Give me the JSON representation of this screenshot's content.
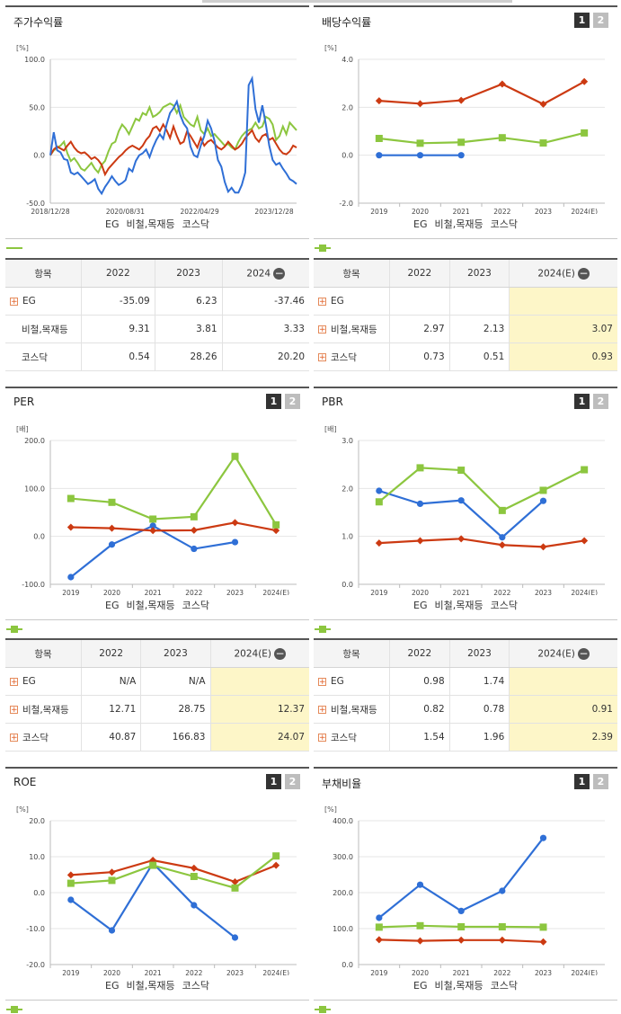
{
  "colors": {
    "eg": "#2f6fd6",
    "steel": "#cc3a12",
    "kosdaq": "#8cc63f"
  },
  "legend": [
    "EG",
    "비철,목재등",
    "코스닥"
  ],
  "btn_labels": [
    "1",
    "2"
  ],
  "panels": [
    {
      "title": "주가수익률",
      "unit": "[%]",
      "show_buttons": false,
      "chart_data": {
        "type": "line",
        "title": "주가수익률",
        "ylabel": "[%]",
        "ylim": [
          -50,
          100
        ],
        "yticks": [
          "100.0",
          "50.0",
          "0.0",
          "-50.0"
        ],
        "xtick_labels": [
          "2018/12/28",
          "2020/08/31",
          "2022/04/29",
          "2023/12/28"
        ],
        "x_start": "2018-12-28",
        "x_end": "2024-06-28",
        "markers": false,
        "series": [
          {
            "name": "EG",
            "key": "eg",
            "values": [
              0,
              24,
              5,
              3,
              -4,
              -5,
              -18,
              -20,
              -18,
              -22,
              -26,
              -30,
              -28,
              -25,
              -35,
              -40,
              -33,
              -28,
              -22,
              -27,
              -31,
              -29,
              -26,
              -14,
              -17,
              -6,
              0,
              2,
              6,
              -2,
              8,
              16,
              22,
              17,
              32,
              44,
              49,
              56,
              42,
              33,
              28,
              9,
              0,
              -2,
              10,
              20,
              36,
              28,
              15,
              -5,
              -12,
              -28,
              -38,
              -34,
              -39,
              -39,
              -31,
              -18,
              73,
              80,
              48,
              34,
              52,
              32,
              10,
              -5,
              -10,
              -8,
              -14,
              -19,
              -25,
              -27,
              -30
            ]
          },
          {
            "name": "비철,목재등",
            "key": "steel",
            "values": [
              0,
              6,
              9,
              7,
              5,
              10,
              14,
              8,
              4,
              2,
              3,
              0,
              -4,
              -2,
              -5,
              -10,
              -20,
              -14,
              -10,
              -6,
              -2,
              1,
              5,
              8,
              10,
              8,
              6,
              10,
              16,
              20,
              28,
              30,
              25,
              32,
              26,
              18,
              30,
              20,
              12,
              14,
              25,
              20,
              14,
              8,
              18,
              10,
              14,
              16,
              12,
              8,
              6,
              9,
              14,
              10,
              6,
              8,
              12,
              18,
              22,
              26,
              18,
              14,
              20,
              22,
              16,
              18,
              12,
              6,
              2,
              1,
              4,
              10,
              8
            ]
          },
          {
            "name": "코스닥",
            "key": "kosdaq",
            "values": [
              0,
              5,
              8,
              10,
              14,
              2,
              -6,
              -3,
              -8,
              -14,
              -16,
              -12,
              -8,
              -14,
              -18,
              -10,
              -6,
              4,
              12,
              14,
              25,
              32,
              28,
              22,
              30,
              38,
              36,
              44,
              42,
              50,
              40,
              42,
              45,
              50,
              52,
              54,
              52,
              44,
              52,
              40,
              36,
              32,
              30,
              40,
              26,
              22,
              28,
              20,
              22,
              18,
              14,
              10,
              12,
              8,
              6,
              14,
              20,
              24,
              26,
              28,
              34,
              28,
              30,
              40,
              38,
              32,
              16,
              20,
              30,
              22,
              34,
              30,
              26
            ]
          }
        ]
      }
    },
    {
      "title": "배당수익률",
      "unit": "[%]",
      "show_buttons": true,
      "chart_data": {
        "type": "line",
        "title": "배당수익률",
        "ylabel": "[%]",
        "ylim": [
          -2,
          4
        ],
        "yticks": [
          "4.0",
          "2.0",
          "0.0",
          "-2.0"
        ],
        "categories": [
          "2019",
          "2020",
          "2021",
          "2022",
          "2023",
          "2024(E)"
        ],
        "markers": true,
        "series": [
          {
            "name": "EG",
            "key": "eg",
            "values": [
              0,
              0,
              0,
              null,
              null,
              null
            ]
          },
          {
            "name": "비철,목재등",
            "key": "steel",
            "values": [
              2.27,
              2.15,
              2.29,
              2.97,
              2.13,
              3.07
            ]
          },
          {
            "name": "코스닥",
            "key": "kosdaq",
            "values": [
              0.7,
              0.5,
              0.54,
              0.73,
              0.51,
              0.93
            ]
          }
        ]
      }
    },
    {
      "title": "PER",
      "unit": "[배]",
      "show_buttons": true,
      "chart_data": {
        "type": "line",
        "title": "PER",
        "ylabel": "[배]",
        "ylim": [
          -100,
          200
        ],
        "yticks": [
          "200.0",
          "100.0",
          "0.0",
          "-100.0"
        ],
        "categories": [
          "2019",
          "2020",
          "2021",
          "2022",
          "2023",
          "2024(E)"
        ],
        "markers": true,
        "series": [
          {
            "name": "EG",
            "key": "eg",
            "values": [
              -85,
              -17,
              22,
              -26,
              -12,
              null
            ]
          },
          {
            "name": "비철,목재등",
            "key": "steel",
            "values": [
              19,
              17,
              12,
              12.71,
              28.75,
              12.37
            ]
          },
          {
            "name": "코스닥",
            "key": "kosdaq",
            "values": [
              79,
              71,
              36,
              40.87,
              166.83,
              24.07
            ]
          }
        ]
      }
    },
    {
      "title": "PBR",
      "unit": "[배]",
      "show_buttons": true,
      "chart_data": {
        "type": "line",
        "title": "PBR",
        "ylabel": "[배]",
        "ylim": [
          0,
          3
        ],
        "yticks": [
          "3.0",
          "2.0",
          "1.0",
          "0.0"
        ],
        "categories": [
          "2019",
          "2020",
          "2021",
          "2022",
          "2023",
          "2024(E)"
        ],
        "markers": true,
        "series": [
          {
            "name": "EG",
            "key": "eg",
            "values": [
              1.95,
              1.68,
              1.75,
              0.98,
              1.74,
              null
            ]
          },
          {
            "name": "비철,목재등",
            "key": "steel",
            "values": [
              0.86,
              0.91,
              0.95,
              0.82,
              0.78,
              0.91
            ]
          },
          {
            "name": "코스닥",
            "key": "kosdaq",
            "values": [
              1.72,
              2.43,
              2.38,
              1.54,
              1.96,
              2.39
            ]
          }
        ]
      }
    },
    {
      "title": "ROE",
      "unit": "[%]",
      "show_buttons": true,
      "chart_data": {
        "type": "line",
        "title": "ROE",
        "ylabel": "[%]",
        "ylim": [
          -20,
          20
        ],
        "yticks": [
          "20.0",
          "10.0",
          "0.0",
          "-10.0",
          "-20.0"
        ],
        "categories": [
          "2019",
          "2020",
          "2021",
          "2022",
          "2023",
          "2024(E)"
        ],
        "markers": true,
        "series": [
          {
            "name": "EG",
            "key": "eg",
            "values": [
              -2,
              -10.5,
              8.2,
              -3.5,
              -12.5,
              null
            ]
          },
          {
            "name": "비철,목재등",
            "key": "steel",
            "values": [
              4.9,
              5.7,
              9,
              6.8,
              3,
              7.6
            ]
          },
          {
            "name": "코스닥",
            "key": "kosdaq",
            "values": [
              2.6,
              3.4,
              7.6,
              4.5,
              1.3,
              10.2
            ]
          }
        ]
      }
    },
    {
      "title": "부채비율",
      "unit": "[%]",
      "show_buttons": true,
      "chart_data": {
        "type": "line",
        "title": "부채비율",
        "ylabel": "[%]",
        "ylim": [
          0,
          400
        ],
        "yticks": [
          "400.0",
          "300.0",
          "200.0",
          "100.0",
          "0.0"
        ],
        "categories": [
          "2019",
          "2020",
          "2021",
          "2022",
          "2023",
          "2024(E)"
        ],
        "markers": true,
        "series": [
          {
            "name": "EG",
            "key": "eg",
            "values": [
              130,
              222,
              149,
              205,
              352,
              null
            ]
          },
          {
            "name": "비철,목재등",
            "key": "steel",
            "values": [
              69,
              66,
              68,
              68,
              63,
              null
            ]
          },
          {
            "name": "코스닥",
            "key": "kosdaq",
            "values": [
              104,
              108,
              105,
              105,
              104,
              null
            ]
          }
        ]
      }
    }
  ],
  "tables": [
    {
      "header": [
        "항목",
        "2022",
        "2023",
        "2024"
      ],
      "hl_last": false,
      "rows": [
        {
          "label": "EG",
          "plus": true,
          "values": [
            "-35.09",
            "6.23",
            "-37.46"
          ]
        },
        {
          "label": "비철,목재등",
          "plus": false,
          "values": [
            "9.31",
            "3.81",
            "3.33"
          ]
        },
        {
          "label": "코스닥",
          "plus": false,
          "values": [
            "0.54",
            "28.26",
            "20.20"
          ]
        }
      ]
    },
    {
      "header": [
        "항목",
        "2022",
        "2023",
        "2024(E)"
      ],
      "hl_last": true,
      "rows": [
        {
          "label": "EG",
          "plus": true,
          "values": [
            "",
            "",
            ""
          ]
        },
        {
          "label": "비철,목재등",
          "plus": true,
          "values": [
            "2.97",
            "2.13",
            "3.07"
          ]
        },
        {
          "label": "코스닥",
          "plus": true,
          "values": [
            "0.73",
            "0.51",
            "0.93"
          ]
        }
      ]
    },
    {
      "header": [
        "항목",
        "2022",
        "2023",
        "2024(E)"
      ],
      "hl_last": true,
      "rows": [
        {
          "label": "EG",
          "plus": true,
          "values": [
            "N/A",
            "N/A",
            ""
          ]
        },
        {
          "label": "비철,목재등",
          "plus": true,
          "values": [
            "12.71",
            "28.75",
            "12.37"
          ]
        },
        {
          "label": "코스닥",
          "plus": true,
          "values": [
            "40.87",
            "166.83",
            "24.07"
          ]
        }
      ]
    },
    {
      "header": [
        "항목",
        "2022",
        "2023",
        "2024(E)"
      ],
      "hl_last": true,
      "rows": [
        {
          "label": "EG",
          "plus": true,
          "values": [
            "0.98",
            "1.74",
            ""
          ]
        },
        {
          "label": "비철,목재등",
          "plus": true,
          "values": [
            "0.82",
            "0.78",
            "0.91"
          ]
        },
        {
          "label": "코스닥",
          "plus": true,
          "values": [
            "1.54",
            "1.96",
            "2.39"
          ]
        }
      ]
    }
  ]
}
